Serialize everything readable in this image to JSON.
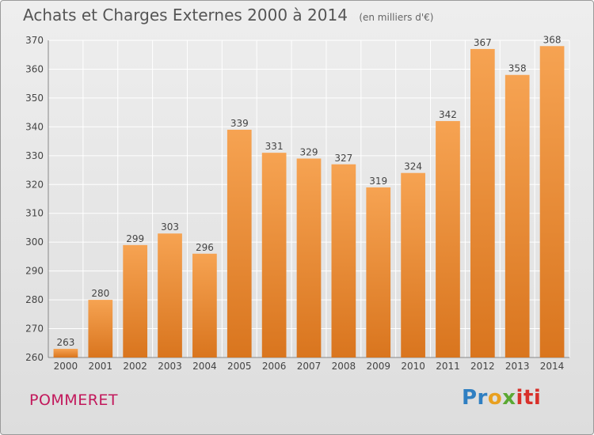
{
  "header": {
    "title": "Achats et Charges Externes 2000 à 2014",
    "subtitle": "(en milliers d'€)"
  },
  "footer": {
    "place": "POMMERET",
    "brand": [
      "Pr",
      "o",
      "x",
      "iti"
    ]
  },
  "colors": {
    "bar_top": "#f6a352",
    "bar_bottom": "#d9751e",
    "grid": "#ffffff",
    "axis_text": "#444444",
    "place": "#c2185b"
  },
  "chart_data": {
    "type": "bar",
    "title": "Achats et Charges Externes 2000 à 2014",
    "subtitle": "(en milliers d'€)",
    "categories": [
      "2000",
      "2001",
      "2002",
      "2003",
      "2004",
      "2005",
      "2006",
      "2007",
      "2008",
      "2009",
      "2010",
      "2011",
      "2012",
      "2013",
      "2014"
    ],
    "values": [
      263,
      280,
      299,
      303,
      296,
      339,
      331,
      329,
      327,
      319,
      324,
      342,
      367,
      358,
      368
    ],
    "ylim": [
      260,
      370
    ],
    "yticks": [
      260,
      270,
      280,
      290,
      300,
      310,
      320,
      330,
      340,
      350,
      360,
      370
    ],
    "grid": true,
    "data_labels": true
  }
}
